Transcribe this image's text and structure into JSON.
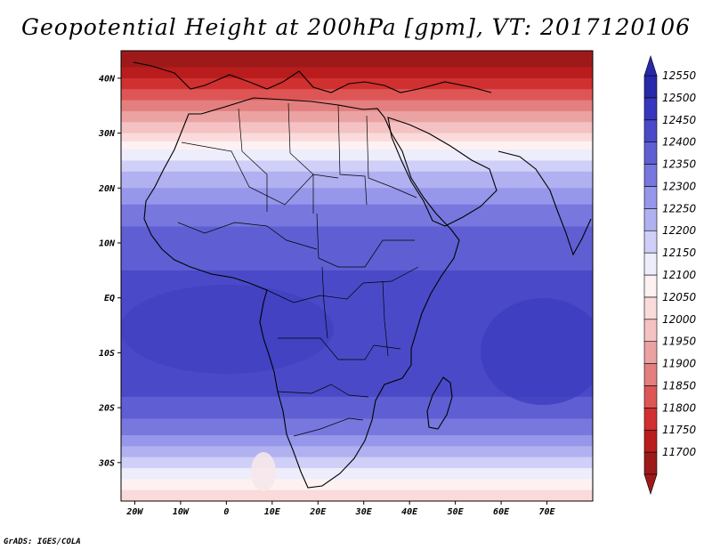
{
  "title": "Geopotential Height at 200hPa [gpm], VT: 2017120106",
  "credit": "GrADS: IGES/COLA",
  "map": {
    "lon_range": [
      -23,
      80
    ],
    "lat_range": [
      -37,
      45
    ],
    "lat_ticks": [
      {
        "lat": 40,
        "label": "40N"
      },
      {
        "lat": 30,
        "label": "30N"
      },
      {
        "lat": 20,
        "label": "20N"
      },
      {
        "lat": 10,
        "label": "10N"
      },
      {
        "lat": 0,
        "label": "EQ"
      },
      {
        "lat": -10,
        "label": "10S"
      },
      {
        "lat": -20,
        "label": "20S"
      },
      {
        "lat": -30,
        "label": "30S"
      }
    ],
    "lon_ticks": [
      {
        "lon": -20,
        "label": "20W"
      },
      {
        "lon": -10,
        "label": "10W"
      },
      {
        "lon": 0,
        "label": "0"
      },
      {
        "lon": 10,
        "label": "10E"
      },
      {
        "lon": 20,
        "label": "20E"
      },
      {
        "lon": 30,
        "label": "30E"
      },
      {
        "lon": 40,
        "label": "40E"
      },
      {
        "lon": 50,
        "label": "50E"
      },
      {
        "lon": 60,
        "label": "60E"
      },
      {
        "lon": 70,
        "label": "70E"
      }
    ],
    "bands": [
      {
        "lat": 45,
        "value": 11700
      },
      {
        "lat": 42,
        "value": 11750
      },
      {
        "lat": 40,
        "value": 11800
      },
      {
        "lat": 38,
        "value": 11850
      },
      {
        "lat": 36,
        "value": 11900
      },
      {
        "lat": 34,
        "value": 11950
      },
      {
        "lat": 32,
        "value": 12000
      },
      {
        "lat": 30,
        "value": 12050
      },
      {
        "lat": 28.5,
        "value": 12100
      },
      {
        "lat": 27,
        "value": 12150
      },
      {
        "lat": 25,
        "value": 12200
      },
      {
        "lat": 23,
        "value": 12250
      },
      {
        "lat": 20,
        "value": 12300
      },
      {
        "lat": 17,
        "value": 12350
      },
      {
        "lat": 13,
        "value": 12400
      },
      {
        "lat": 5,
        "value": 12450
      },
      {
        "lat": -12,
        "value": 12450
      },
      {
        "lat": -18,
        "value": 12400
      },
      {
        "lat": -22,
        "value": 12350
      },
      {
        "lat": -25,
        "value": 12300
      },
      {
        "lat": -27,
        "value": 12250
      },
      {
        "lat": -29,
        "value": 12200
      },
      {
        "lat": -31,
        "value": 12150
      },
      {
        "lat": -33,
        "value": 12100
      },
      {
        "lat": -35,
        "value": 12050
      },
      {
        "lat": -37,
        "value": 12000
      }
    ]
  },
  "colorbar": {
    "levels": [
      {
        "value": 11700,
        "color": "#9e1a1a"
      },
      {
        "value": 11750,
        "color": "#b91c1c"
      },
      {
        "value": 11800,
        "color": "#d03030"
      },
      {
        "value": 11850,
        "color": "#de5555"
      },
      {
        "value": 11900,
        "color": "#e37f7f"
      },
      {
        "value": 11950,
        "color": "#eba2a2"
      },
      {
        "value": 12000,
        "color": "#f4c2c2"
      },
      {
        "value": 12050,
        "color": "#fadada"
      },
      {
        "value": 12100,
        "color": "#fdf1f1"
      },
      {
        "value": 12150,
        "color": "#ededfc"
      },
      {
        "value": 12200,
        "color": "#cfcff7"
      },
      {
        "value": 12250,
        "color": "#b1b1f1"
      },
      {
        "value": 12300,
        "color": "#9696ea"
      },
      {
        "value": 12350,
        "color": "#7777de"
      },
      {
        "value": 12400,
        "color": "#5f5fd3"
      },
      {
        "value": 12450,
        "color": "#4a4ac8"
      },
      {
        "value": 12500,
        "color": "#3737bd"
      },
      {
        "value": 12550,
        "color": "#2828aa"
      }
    ]
  }
}
